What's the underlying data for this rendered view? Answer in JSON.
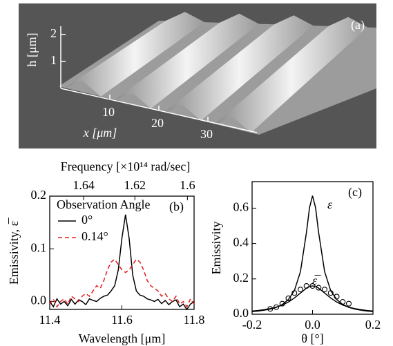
{
  "chart_data": [
    {
      "type": "surface",
      "panel_label": "(a)",
      "xlabel": "x [μm]",
      "ylabel": "h [μm]",
      "xlim": [
        0,
        40
      ],
      "xticks": [
        10,
        20,
        30
      ],
      "ylim": [
        0,
        2.3
      ],
      "yticks": [
        1,
        2
      ]
    },
    {
      "type": "line",
      "panel_label": "(b)",
      "x2label": "Frequency [×10¹⁴ rad/sec]",
      "xlabel": "Wavelength [μm]",
      "ylabel": "Emissivity, ε̅",
      "legend_title": "Observation Angle",
      "legend": "upper left",
      "x": [
        11.4,
        11.41,
        11.42,
        11.43,
        11.44,
        11.45,
        11.46,
        11.47,
        11.48,
        11.49,
        11.5,
        11.51,
        11.52,
        11.53,
        11.54,
        11.55,
        11.56,
        11.57,
        11.58,
        11.59,
        11.6,
        11.61,
        11.62,
        11.63,
        11.64,
        11.65,
        11.66,
        11.67,
        11.68,
        11.69,
        11.7,
        11.71,
        11.72,
        11.73,
        11.74,
        11.75,
        11.76,
        11.77,
        11.78,
        11.79,
        11.8
      ],
      "series": [
        {
          "name": "0°",
          "color": "#000000",
          "dash": false,
          "values": [
            0,
            -0.01,
            0.005,
            -0.005,
            0,
            -0.008,
            0.004,
            -0.005,
            0.003,
            0,
            -0.006,
            0.005,
            0.002,
            0,
            0.006,
            0.01,
            0.012,
            0.02,
            0.03,
            0.06,
            0.12,
            0.165,
            0.12,
            0.05,
            0.02,
            0.012,
            0.01,
            0.005,
            0.003,
            0,
            0.004,
            -0.004,
            0.002,
            -0.006,
            0,
            0.003,
            -0.01,
            -0.005,
            -0.015,
            -0.005,
            0
          ]
        },
        {
          "name": "0.14°",
          "color": "#e31a1c",
          "dash": true,
          "values": [
            -0.005,
            0.005,
            -0.01,
            0,
            0.005,
            -0.005,
            0.01,
            0.005,
            0,
            0.01,
            0.015,
            0.01,
            0.02,
            0.03,
            0.025,
            0.04,
            0.06,
            0.075,
            0.08,
            0.07,
            0.06,
            0.055,
            0.06,
            0.07,
            0.08,
            0.075,
            0.06,
            0.04,
            0.03,
            0.025,
            0.02,
            0.01,
            0.015,
            0.005,
            0,
            0.01,
            -0.005,
            0,
            -0.01,
            0.005,
            -0.005
          ]
        }
      ],
      "xlim": [
        11.4,
        11.8
      ],
      "xticks": [
        11.4,
        11.6,
        11.8
      ],
      "x2lim": [
        1.6535,
        1.5975
      ],
      "x2ticks": [
        1.64,
        1.62,
        1.6
      ],
      "ylim": [
        -0.015,
        0.2
      ],
      "yticks": [
        {
          "value": 0,
          "label": "0.0"
        },
        0.1,
        0.2
      ]
    },
    {
      "type": "line",
      "panel_label": "(c)",
      "xlabel": "θ [°]",
      "ylabel": "Emissivity",
      "annotations": [
        "ε",
        "ε̅"
      ],
      "series": [
        {
          "style": "line",
          "color": "#000000",
          "x": [
            -0.2,
            -0.18,
            -0.16,
            -0.14,
            -0.12,
            -0.1,
            -0.08,
            -0.06,
            -0.04,
            -0.02,
            -0.01,
            0,
            0.01,
            0.02,
            0.04,
            0.06,
            0.08,
            0.1,
            0.12,
            0.14,
            0.16,
            0.18,
            0.2
          ],
          "values": [
            0.015,
            0.018,
            0.023,
            0.029,
            0.039,
            0.055,
            0.083,
            0.134,
            0.241,
            0.464,
            0.603,
            0.67,
            0.603,
            0.464,
            0.241,
            0.134,
            0.083,
            0.055,
            0.039,
            0.029,
            0.023,
            0.018,
            0.015
          ]
        },
        {
          "style": "line",
          "color": "#000000",
          "x": [
            -0.2,
            -0.18,
            -0.16,
            -0.14,
            -0.12,
            -0.1,
            -0.08,
            -0.06,
            -0.04,
            -0.02,
            -0.01,
            0,
            0.01,
            0.02,
            0.04,
            0.06,
            0.08,
            0.1,
            0.12,
            0.14,
            0.16,
            0.18,
            0.2
          ],
          "values": [
            0.018,
            0.021,
            0.026,
            0.032,
            0.04,
            0.052,
            0.069,
            0.092,
            0.12,
            0.148,
            0.157,
            0.16,
            0.157,
            0.148,
            0.12,
            0.092,
            0.069,
            0.052,
            0.04,
            0.032,
            0.026,
            0.021,
            0.018
          ]
        },
        {
          "style": "circle",
          "color": "#000000",
          "x": [
            -0.14,
            -0.12,
            -0.1,
            -0.08,
            -0.06,
            -0.04,
            -0.02,
            0,
            0.02,
            0.04,
            0.06,
            0.08,
            0.1,
            0.12
          ],
          "values": [
            0.03,
            0.04,
            0.06,
            0.09,
            0.12,
            0.14,
            0.16,
            0.16,
            0.15,
            0.14,
            0.12,
            0.1,
            0.07,
            0.06
          ]
        }
      ],
      "xlim": [
        -0.2,
        0.2
      ],
      "xticks": [
        -0.2,
        {
          "value": 0,
          "label": "0.0"
        },
        0.2
      ],
      "ylim": [
        0,
        0.75
      ],
      "yticks": [
        {
          "value": 0,
          "label": "0.0"
        },
        0.2,
        0.4,
        0.6
      ]
    }
  ]
}
